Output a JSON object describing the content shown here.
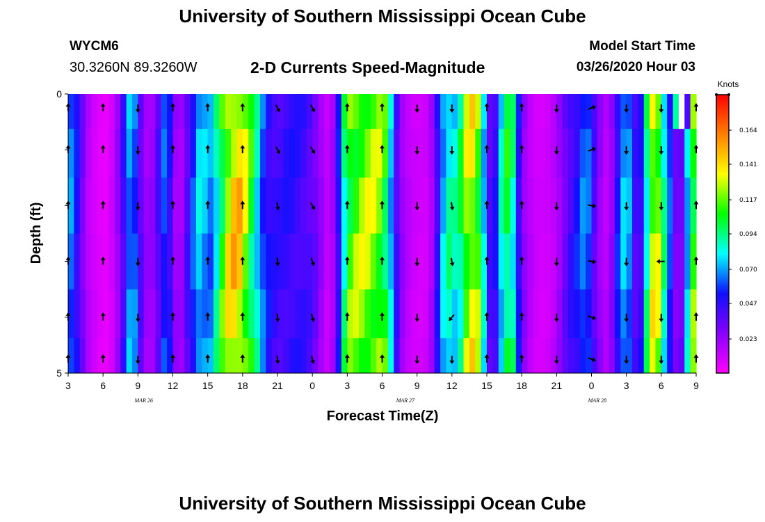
{
  "header": {
    "title": "University of Southern Mississippi Ocean Cube",
    "station": "WYCM6",
    "coordinates": "30.3260N 89.3260W",
    "plot_title": "2-D Currents Speed-Magnitude",
    "start_label": "Model Start Time",
    "start_value": "03/26/2020 Hour 03"
  },
  "footer": {
    "title": "University of Southern Mississippi Ocean Cube"
  },
  "chart_data": {
    "type": "heatmap",
    "title": "2-D Currents Speed-Magnitude",
    "xlabel": "Forecast Time(Z)",
    "ylabel": "Depth (ft)",
    "x_ticks": [
      "3",
      "6",
      "9",
      "12",
      "15",
      "18",
      "21",
      "0",
      "3",
      "6",
      "9",
      "12",
      "15",
      "18",
      "21",
      "0",
      "3",
      "6",
      "9"
    ],
    "date_labels": [
      {
        "label": "MAR 26",
        "hour": 9.5
      },
      {
        "label": "MAR 27",
        "hour": 32
      },
      {
        "label": "MAR 28",
        "hour": 48.5
      }
    ],
    "x_range_hours": [
      3,
      57
    ],
    "y_range_ft": [
      0,
      5
    ],
    "y_tick_labels": [
      {
        "depth": 0,
        "label": "0"
      },
      {
        "depth": 1,
        "label": ""
      },
      {
        "depth": 2,
        "label": ""
      },
      {
        "depth": 3,
        "label": ""
      },
      {
        "depth": 4,
        "label": ""
      },
      {
        "depth": 5,
        "label": "5"
      }
    ],
    "colorbar": {
      "title": "Knots",
      "range": [
        0,
        0.188
      ],
      "ticks": [
        "0.023",
        "0.047",
        "0.070",
        "0.094",
        "0.117",
        "0.141",
        "0.164"
      ],
      "tick_values": [
        0.023,
        0.047,
        0.07,
        0.094,
        0.117,
        0.141,
        0.164
      ],
      "stops": [
        "#ff00ff",
        "#8800ff",
        "#1010ff",
        "#00ffff",
        "#00ff00",
        "#ffff00",
        "#ff8000",
        "#ff0000"
      ]
    },
    "depth_levels": [
      0.25,
      1.0,
      2.0,
      3.0,
      4.0,
      4.75
    ],
    "speed_profile": [
      {
        "h": 3.0,
        "v": 0.075
      },
      {
        "h": 3.5,
        "v": 0.06
      },
      {
        "h": 4.0,
        "v": 0.045
      },
      {
        "h": 4.5,
        "v": 0.02
      },
      {
        "h": 5.5,
        "v": 0.008
      },
      {
        "h": 6.5,
        "v": 0.005
      },
      {
        "h": 7.5,
        "v": 0.03
      },
      {
        "h": 8.0,
        "v": 0.062
      },
      {
        "h": 8.5,
        "v": 0.082
      },
      {
        "h": 9.0,
        "v": 0.05
      },
      {
        "h": 9.5,
        "v": 0.028
      },
      {
        "h": 10.0,
        "v": 0.02
      },
      {
        "h": 10.5,
        "v": 0.03
      },
      {
        "h": 11.0,
        "v": 0.052
      },
      {
        "h": 11.5,
        "v": 0.072
      },
      {
        "h": 12.0,
        "v": 0.03
      },
      {
        "h": 12.5,
        "v": 0.018
      },
      {
        "h": 13.0,
        "v": 0.028
      },
      {
        "h": 13.5,
        "v": 0.055
      },
      {
        "h": 14.0,
        "v": 0.068
      },
      {
        "h": 14.5,
        "v": 0.09
      },
      {
        "h": 15.0,
        "v": 0.06
      },
      {
        "h": 15.5,
        "v": 0.082
      },
      {
        "h": 16.0,
        "v": 0.1
      },
      {
        "h": 16.5,
        "v": 0.13
      },
      {
        "h": 17.0,
        "v": 0.145
      },
      {
        "h": 17.5,
        "v": 0.152
      },
      {
        "h": 18.0,
        "v": 0.142
      },
      {
        "h": 18.5,
        "v": 0.118
      },
      {
        "h": 19.0,
        "v": 0.1
      },
      {
        "h": 19.5,
        "v": 0.075
      },
      {
        "h": 20.0,
        "v": 0.055
      },
      {
        "h": 21.0,
        "v": 0.045
      },
      {
        "h": 22.0,
        "v": 0.05
      },
      {
        "h": 23.0,
        "v": 0.048
      },
      {
        "h": 24.0,
        "v": 0.04
      },
      {
        "h": 24.5,
        "v": 0.03
      },
      {
        "h": 25.0,
        "v": 0.018
      },
      {
        "h": 25.5,
        "v": 0.012
      },
      {
        "h": 26.0,
        "v": 0.03
      },
      {
        "h": 26.5,
        "v": 0.075
      },
      {
        "h": 27.0,
        "v": 0.118
      },
      {
        "h": 28.0,
        "v": 0.128
      },
      {
        "h": 29.0,
        "v": 0.13
      },
      {
        "h": 30.0,
        "v": 0.124
      },
      {
        "h": 30.5,
        "v": 0.1
      },
      {
        "h": 31.0,
        "v": 0.06
      },
      {
        "h": 31.5,
        "v": 0.03
      },
      {
        "h": 32.0,
        "v": 0.018
      },
      {
        "h": 33.0,
        "v": 0.01
      },
      {
        "h": 34.0,
        "v": 0.012
      },
      {
        "h": 34.5,
        "v": 0.03
      },
      {
        "h": 35.0,
        "v": 0.068
      },
      {
        "h": 35.5,
        "v": 0.088
      },
      {
        "h": 36.0,
        "v": 0.095
      },
      {
        "h": 36.5,
        "v": 0.08
      },
      {
        "h": 37.0,
        "v": 0.12
      },
      {
        "h": 37.5,
        "v": 0.14
      },
      {
        "h": 38.0,
        "v": 0.138
      },
      {
        "h": 38.5,
        "v": 0.11
      },
      {
        "h": 39.0,
        "v": 0.055
      },
      {
        "h": 39.5,
        "v": 0.03
      },
      {
        "h": 40.0,
        "v": 0.07
      },
      {
        "h": 40.5,
        "v": 0.1
      },
      {
        "h": 41.0,
        "v": 0.112
      },
      {
        "h": 41.5,
        "v": 0.075
      },
      {
        "h": 42.0,
        "v": 0.03
      },
      {
        "h": 43.0,
        "v": 0.012
      },
      {
        "h": 44.0,
        "v": 0.01
      },
      {
        "h": 45.0,
        "v": 0.018
      },
      {
        "h": 45.5,
        "v": 0.03
      },
      {
        "h": 46.0,
        "v": 0.042
      },
      {
        "h": 47.0,
        "v": 0.058
      },
      {
        "h": 47.5,
        "v": 0.074
      },
      {
        "h": 48.0,
        "v": 0.052
      },
      {
        "h": 48.5,
        "v": 0.03
      },
      {
        "h": 49.0,
        "v": 0.02
      },
      {
        "h": 49.5,
        "v": 0.014
      },
      {
        "h": 50.0,
        "v": 0.04
      },
      {
        "h": 50.5,
        "v": 0.068
      },
      {
        "h": 51.0,
        "v": 0.082
      },
      {
        "h": 51.5,
        "v": 0.058
      },
      {
        "h": 52.0,
        "v": 0.03
      },
      {
        "h": 52.5,
        "v": 0.07
      },
      {
        "h": 53.0,
        "v": 0.12
      },
      {
        "h": 53.5,
        "v": 0.15
      },
      {
        "h": 54.0,
        "v": 0.11
      },
      {
        "h": 54.5,
        "v": 0.075
      },
      {
        "h": 55.0,
        "v": 0.045
      },
      {
        "h": 55.5,
        "v": 0.02
      },
      {
        "h": 56.0,
        "v": 0.05
      },
      {
        "h": 56.5,
        "v": 0.11
      },
      {
        "h": 57.0,
        "v": 0.13
      }
    ],
    "arrow_columns": [
      {
        "h": 3,
        "angles": [
          90,
          90,
          90,
          90,
          90,
          90
        ]
      },
      {
        "h": 6,
        "angles": [
          90,
          90,
          90,
          90,
          90,
          90
        ]
      },
      {
        "h": 9,
        "angles": [
          270,
          270,
          270,
          270,
          270,
          270
        ]
      },
      {
        "h": 12,
        "angles": [
          90,
          90,
          90,
          90,
          90,
          90
        ]
      },
      {
        "h": 15,
        "angles": [
          90,
          90,
          90,
          90,
          90,
          90
        ]
      },
      {
        "h": 18,
        "angles": [
          90,
          90,
          90,
          90,
          90,
          90
        ]
      },
      {
        "h": 21,
        "angles": [
          300,
          300,
          280,
          275,
          275,
          275
        ]
      },
      {
        "h": 24,
        "angles": [
          300,
          300,
          300,
          290,
          285,
          285
        ]
      },
      {
        "h": 27,
        "angles": [
          90,
          90,
          90,
          90,
          90,
          90
        ]
      },
      {
        "h": 30,
        "angles": [
          90,
          90,
          90,
          90,
          90,
          90
        ]
      },
      {
        "h": 33,
        "angles": [
          270,
          270,
          270,
          270,
          270,
          270
        ]
      },
      {
        "h": 36,
        "angles": [
          270,
          270,
          280,
          280,
          230,
          270
        ]
      },
      {
        "h": 39,
        "angles": [
          90,
          90,
          90,
          90,
          90,
          90
        ]
      },
      {
        "h": 42,
        "angles": [
          90,
          90,
          90,
          90,
          90,
          90
        ]
      },
      {
        "h": 45,
        "angles": [
          270,
          270,
          270,
          270,
          270,
          270
        ]
      },
      {
        "h": 48,
        "angles": [
          20,
          20,
          350,
          350,
          340,
          340
        ]
      },
      {
        "h": 51,
        "angles": [
          270,
          270,
          270,
          270,
          270,
          270
        ]
      },
      {
        "h": 54,
        "angles": [
          270,
          270,
          270,
          180,
          270,
          270
        ]
      },
      {
        "h": 57,
        "angles": [
          90,
          90,
          90,
          90,
          90,
          90
        ]
      }
    ],
    "top_row_overrides": [
      {
        "h": 55.0,
        "v": 0.09
      },
      {
        "h": 55.5,
        "v": 0.0
      },
      {
        "h": 56.0,
        "v": 0.04
      }
    ]
  }
}
